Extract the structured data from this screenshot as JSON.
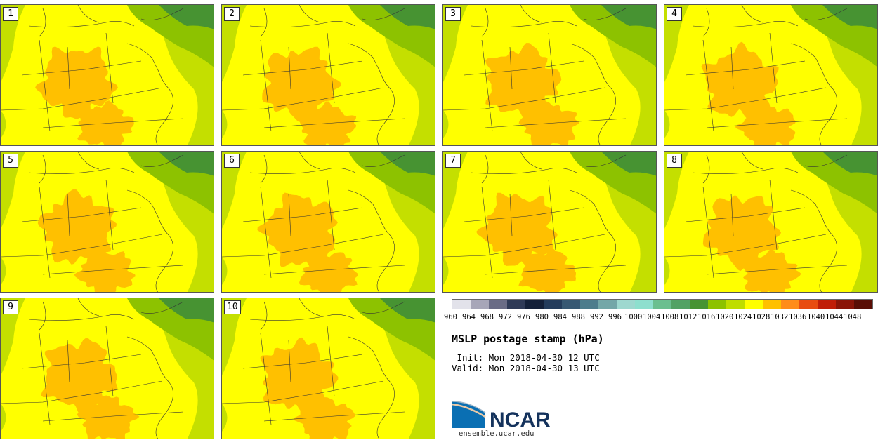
{
  "panels": [
    {
      "label": "1"
    },
    {
      "label": "2"
    },
    {
      "label": "3"
    },
    {
      "label": "4"
    },
    {
      "label": "5"
    },
    {
      "label": "6"
    },
    {
      "label": "7"
    },
    {
      "label": "8"
    },
    {
      "label": "9"
    },
    {
      "label": "10"
    }
  ],
  "legend": {
    "ticks": [
      "960",
      "964",
      "968",
      "972",
      "976",
      "980",
      "984",
      "988",
      "992",
      "996",
      "1000",
      "1004",
      "1008",
      "1012",
      "1016",
      "1020",
      "1024",
      "1028",
      "1032",
      "1036",
      "1040",
      "1044",
      "1048"
    ],
    "colors": [
      "#e2e2ea",
      "#a7a6b8",
      "#6a6c86",
      "#2f3a57",
      "#142039",
      "#243c5c",
      "#375873",
      "#4d7c8c",
      "#74a7a8",
      "#9ed8cf",
      "#8edfce",
      "#6bbf8f",
      "#52a264",
      "#479332",
      "#8dc200",
      "#bfdd00",
      "#ffff00",
      "#ffc000",
      "#ff8c1a",
      "#e84c10",
      "#c01e08",
      "#8a1508",
      "#5a0e05"
    ],
    "units": "hPa"
  },
  "title": "MSLP postage stamp (hPa)",
  "init_line": " Init: Mon 2018-04-30 12 UTC",
  "valid_line": "Valid: Mon 2018-04-30 13 UTC",
  "logo_text": "NCAR",
  "site": "ensemble.ucar.edu",
  "map_colors": {
    "high_1028": "#ffc000",
    "band_1024": "#ffff00",
    "band_1020": "#c4df00",
    "band_1016": "#8dc200",
    "band_1012": "#479332"
  }
}
